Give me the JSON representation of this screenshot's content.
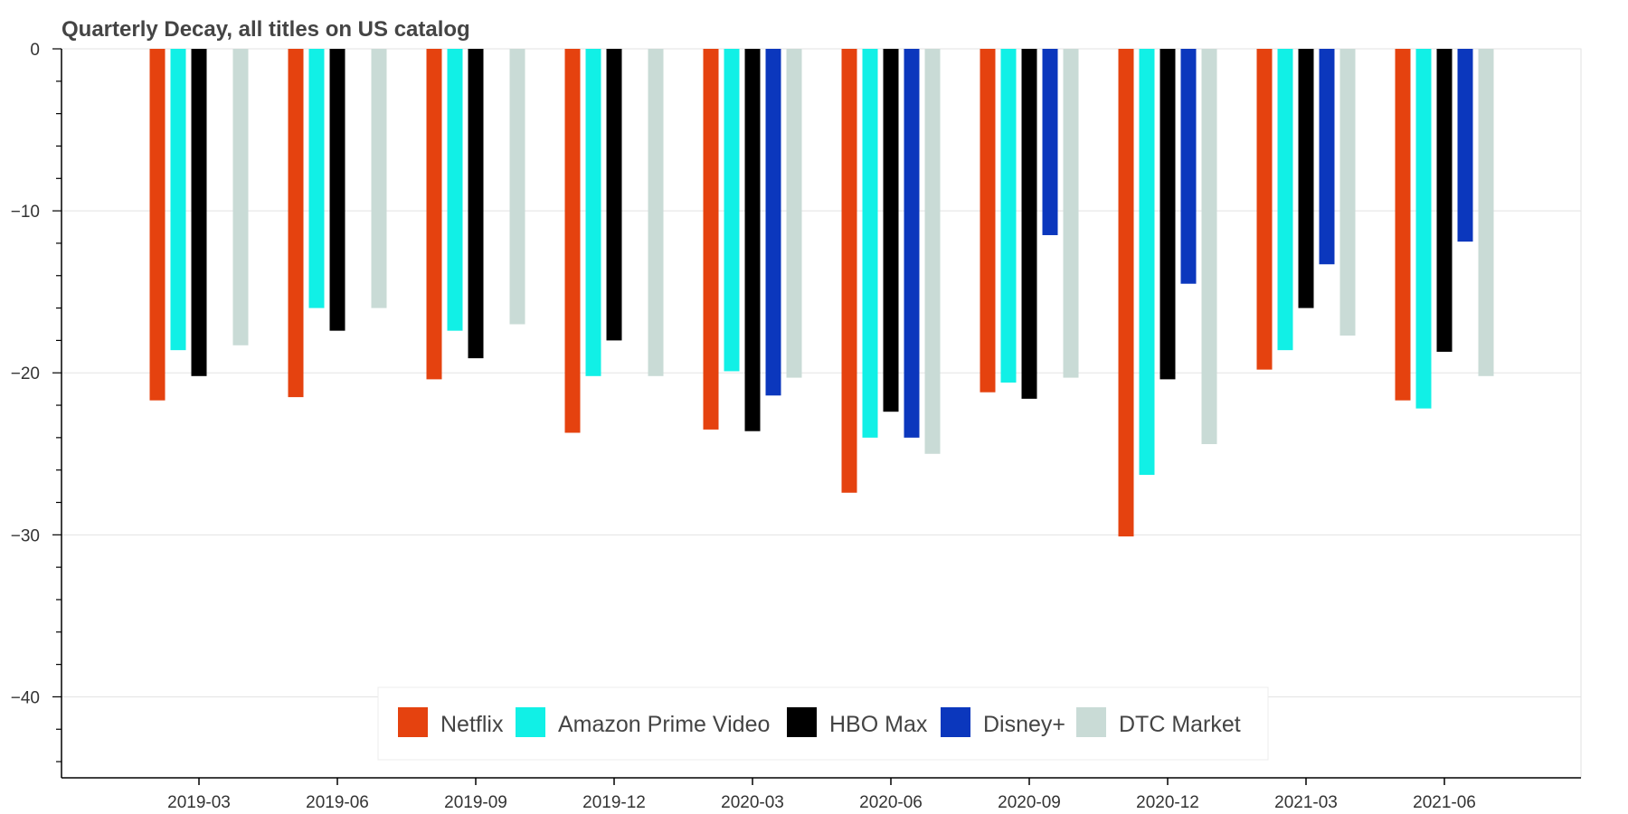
{
  "chart_data": {
    "type": "bar",
    "title": "Quarterly Decay, all titles on US catalog",
    "xlabel": "",
    "ylabel": "",
    "ylim": [
      -45,
      0
    ],
    "yticks": [
      0,
      -10,
      -20,
      -30,
      -40
    ],
    "ytick_labels": [
      "0",
      "−10",
      "−20",
      "−30",
      "−40"
    ],
    "grid": "horizontal",
    "legend_position": "bottom-center",
    "categories": [
      "2019-03",
      "2019-06",
      "2019-09",
      "2019-12",
      "2020-03",
      "2020-06",
      "2020-09",
      "2020-12",
      "2021-03",
      "2021-06"
    ],
    "series": [
      {
        "name": "Netflix",
        "color": "#e5420f",
        "values": [
          -21.7,
          -21.5,
          -20.4,
          -23.7,
          -23.5,
          -27.4,
          -21.2,
          -30.1,
          -19.8,
          -21.7
        ]
      },
      {
        "name": "Amazon Prime Video",
        "color": "#11f0e6",
        "values": [
          -18.6,
          -16.0,
          -17.4,
          -20.2,
          -19.9,
          -24.0,
          -20.6,
          -26.3,
          -18.6,
          -22.2
        ]
      },
      {
        "name": "HBO Max",
        "color": "#000000",
        "values": [
          -20.2,
          -17.4,
          -19.1,
          -18.0,
          -23.6,
          -22.4,
          -21.6,
          -20.4,
          -16.0,
          -18.7
        ]
      },
      {
        "name": "Disney+",
        "color": "#0b37bd",
        "values": [
          null,
          null,
          null,
          null,
          -21.4,
          -24.0,
          -11.5,
          -14.5,
          -13.3,
          -11.9
        ]
      },
      {
        "name": "DTC Market",
        "color": "#c9dbd6",
        "values": [
          -18.3,
          -16.0,
          -17.0,
          -20.2,
          -20.3,
          -25.0,
          -20.3,
          -24.4,
          -17.7,
          -20.2
        ]
      }
    ]
  }
}
